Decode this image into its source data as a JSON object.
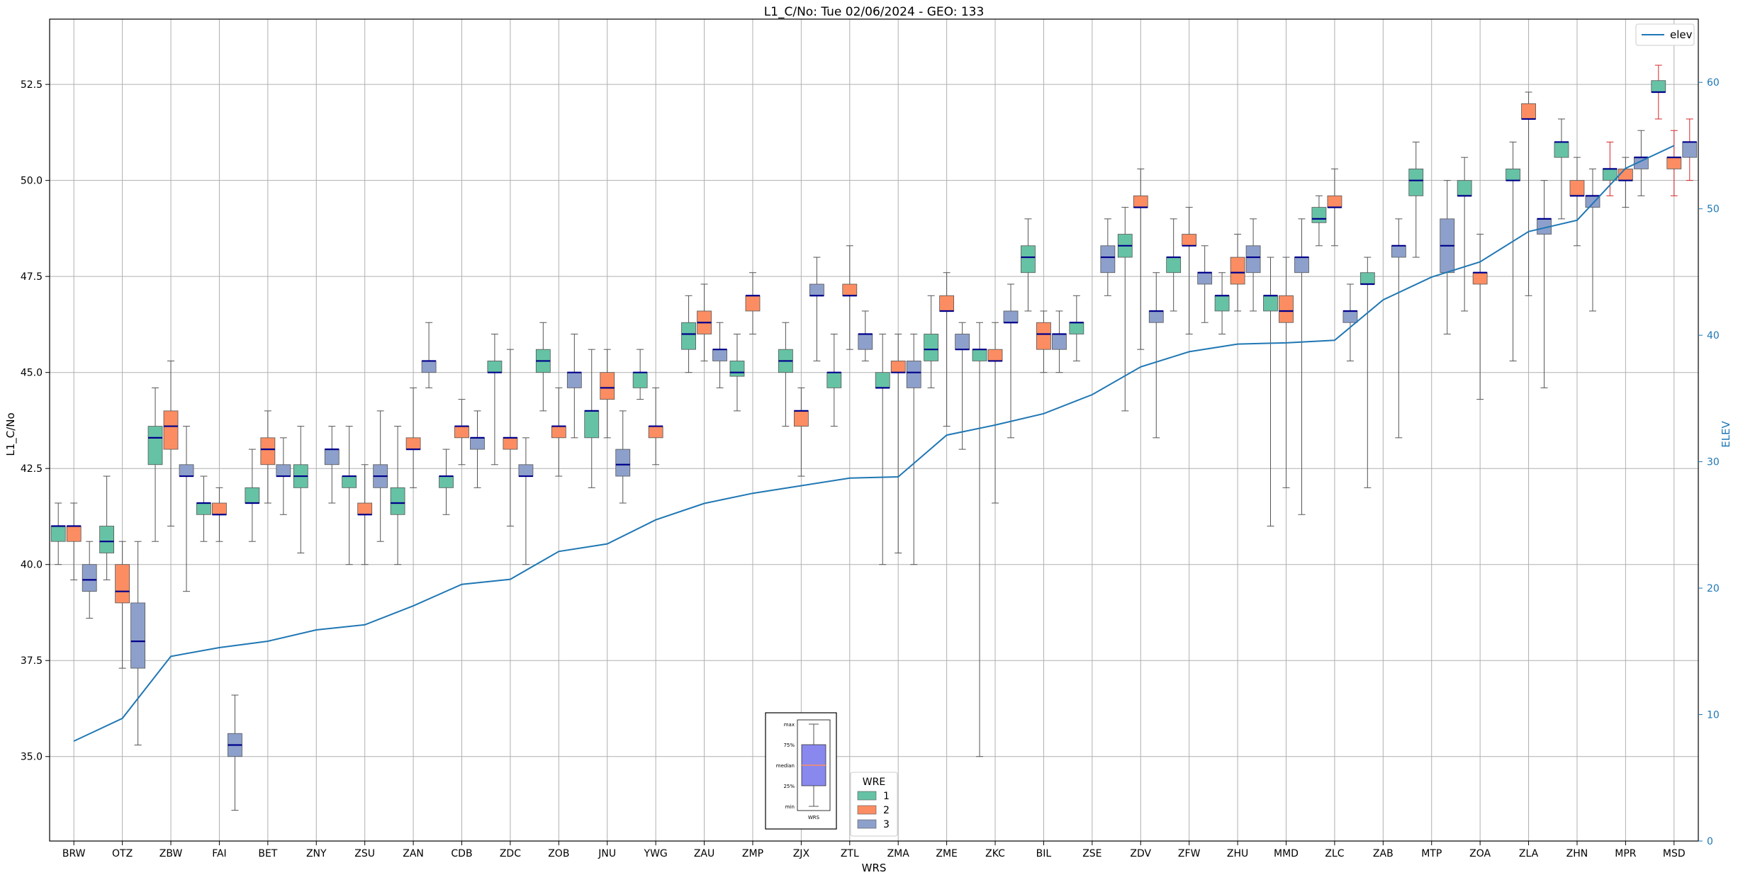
{
  "chart_data": {
    "type": "box",
    "title": "L1_C/No: Tue 02/06/2024 - GEO: 133",
    "xlabel": "WRS",
    "ylabel": "L1_C/No",
    "y2label": "ELEV",
    "ylim": [
      32.8,
      54.2
    ],
    "y2lim": [
      0,
      65
    ],
    "yticks": [
      35.0,
      37.5,
      40.0,
      42.5,
      45.0,
      47.5,
      50.0,
      52.5
    ],
    "y2ticks": [
      0,
      10,
      20,
      30,
      40,
      50,
      60
    ],
    "grid": true,
    "colors": {
      "1": "#66c2a5",
      "2": "#fc8d62",
      "3": "#8da0cb",
      "median": "#00008b",
      "elev": "#1f77b4",
      "whisker": "#555555",
      "whisker_alt": "#d62728"
    },
    "categories": [
      "BRW",
      "OTZ",
      "ZBW",
      "FAI",
      "BET",
      "ZNY",
      "ZSU",
      "ZAN",
      "CDB",
      "ZDC",
      "ZOB",
      "JNU",
      "YWG",
      "ZAU",
      "ZMP",
      "ZJX",
      "ZTL",
      "ZMA",
      "ZME",
      "ZKC",
      "BIL",
      "ZSE",
      "ZDV",
      "ZFW",
      "ZHU",
      "MMD",
      "ZLC",
      "ZAB",
      "MTP",
      "ZOA",
      "ZLA",
      "ZHN",
      "MPR",
      "MSD"
    ],
    "series": [
      {
        "name": "1",
        "values": [
          [
            40.0,
            40.6,
            41.0,
            41.0,
            41.6
          ],
          [
            39.6,
            40.3,
            40.6,
            41.0,
            42.3
          ],
          [
            40.6,
            42.6,
            43.3,
            43.6,
            44.6
          ],
          [
            40.6,
            41.3,
            41.6,
            41.6,
            42.3
          ],
          [
            40.6,
            41.6,
            41.6,
            42.0,
            43.0
          ],
          [
            40.3,
            42.0,
            42.3,
            42.6,
            43.6
          ],
          [
            40.0,
            42.0,
            42.3,
            42.3,
            43.6
          ],
          [
            40.0,
            41.3,
            41.6,
            42.0,
            43.6
          ],
          [
            41.3,
            42.0,
            42.3,
            42.3,
            43.0
          ],
          [
            42.6,
            45.0,
            45.0,
            45.3,
            46.0
          ],
          [
            44.0,
            45.0,
            45.3,
            45.6,
            46.3
          ],
          [
            42.0,
            43.3,
            44.0,
            44.0,
            45.6
          ],
          [
            44.3,
            44.6,
            45.0,
            45.0,
            45.6
          ],
          [
            45.0,
            45.6,
            46.0,
            46.3,
            47.0
          ],
          [
            44.0,
            44.9,
            45.0,
            45.3,
            46.0
          ],
          [
            43.6,
            45.0,
            45.3,
            45.6,
            46.3
          ],
          [
            43.6,
            44.6,
            45.0,
            45.0,
            46.0
          ],
          [
            40.0,
            44.6,
            44.6,
            45.0,
            46.0
          ],
          [
            44.6,
            45.3,
            45.6,
            46.0,
            47.0
          ],
          [
            35.0,
            45.3,
            45.6,
            45.6,
            46.3
          ],
          [
            46.6,
            47.6,
            48.0,
            48.3,
            49.0
          ],
          [
            45.3,
            46.0,
            46.3,
            46.3,
            47.0
          ],
          [
            44.0,
            48.0,
            48.3,
            48.6,
            49.3
          ],
          [
            46.6,
            47.6,
            48.0,
            48.0,
            49.0
          ],
          [
            46.0,
            46.6,
            47.0,
            47.0,
            47.6
          ],
          [
            41.0,
            46.6,
            47.0,
            47.0,
            48.0
          ],
          [
            48.3,
            48.9,
            49.0,
            49.3,
            49.6
          ],
          [
            42.0,
            47.3,
            47.3,
            47.6,
            48.0
          ],
          [
            48.0,
            49.6,
            50.0,
            50.3,
            51.0
          ],
          [
            46.6,
            49.6,
            49.6,
            50.0,
            50.6
          ],
          [
            45.3,
            50.0,
            50.0,
            50.3,
            51.0
          ],
          [
            49.0,
            50.6,
            51.0,
            51.0,
            51.6
          ],
          [
            49.6,
            50.0,
            50.3,
            50.3,
            51.0
          ],
          [
            51.6,
            52.3,
            52.3,
            52.6,
            53.0
          ]
        ]
      },
      {
        "name": "2",
        "values": [
          [
            39.6,
            40.6,
            41.0,
            41.0,
            41.6
          ],
          [
            37.3,
            39.0,
            39.3,
            40.0,
            40.6
          ],
          [
            41.0,
            43.0,
            43.6,
            44.0,
            45.3
          ],
          [
            40.6,
            41.3,
            41.3,
            41.6,
            42.0
          ],
          [
            41.6,
            42.6,
            43.0,
            43.3,
            44.0
          ],
          null,
          [
            40.0,
            41.3,
            41.3,
            41.6,
            42.6
          ],
          [
            42.0,
            43.0,
            43.0,
            43.3,
            44.6
          ],
          [
            42.6,
            43.3,
            43.6,
            43.6,
            44.3
          ],
          [
            41.0,
            43.0,
            43.3,
            43.3,
            45.6
          ],
          [
            42.3,
            43.3,
            43.6,
            43.6,
            44.6
          ],
          [
            43.3,
            44.3,
            44.6,
            45.0,
            45.6
          ],
          [
            42.6,
            43.3,
            43.6,
            43.6,
            44.6
          ],
          [
            45.3,
            46.0,
            46.3,
            46.6,
            47.3
          ],
          [
            46.0,
            46.6,
            47.0,
            47.0,
            47.6
          ],
          [
            42.3,
            43.6,
            44.0,
            44.0,
            44.6
          ],
          [
            45.6,
            47.0,
            47.0,
            47.3,
            48.3
          ],
          [
            40.3,
            45.0,
            45.0,
            45.3,
            46.0
          ],
          [
            43.6,
            46.6,
            46.6,
            47.0,
            47.6
          ],
          [
            41.6,
            45.3,
            45.3,
            45.6,
            46.3
          ],
          [
            45.0,
            45.6,
            46.0,
            46.3,
            46.6
          ],
          null,
          [
            45.6,
            49.3,
            49.3,
            49.6,
            50.3
          ],
          [
            46.0,
            48.3,
            48.3,
            48.6,
            49.3
          ],
          [
            46.6,
            47.3,
            47.6,
            48.0,
            48.6
          ],
          [
            42.0,
            46.3,
            46.6,
            47.0,
            48.0
          ],
          [
            48.3,
            49.3,
            49.3,
            49.6,
            50.3
          ],
          null,
          null,
          [
            44.3,
            47.3,
            47.6,
            47.6,
            48.6
          ],
          [
            47.0,
            51.6,
            51.6,
            52.0,
            52.3
          ],
          [
            48.3,
            49.6,
            49.6,
            50.0,
            50.6
          ],
          [
            49.3,
            50.0,
            50.0,
            50.3,
            50.6
          ],
          [
            49.6,
            50.3,
            50.6,
            50.6,
            51.3
          ]
        ]
      },
      {
        "name": "3",
        "values": [
          [
            38.6,
            39.3,
            39.6,
            40.0,
            40.6
          ],
          [
            35.3,
            37.3,
            38.0,
            39.0,
            40.6
          ],
          [
            39.3,
            42.3,
            42.3,
            42.6,
            43.6
          ],
          [
            33.6,
            35.0,
            35.3,
            35.6,
            36.6
          ],
          [
            41.3,
            42.3,
            42.3,
            42.6,
            43.3
          ],
          [
            41.6,
            42.6,
            43.0,
            43.0,
            43.6
          ],
          [
            40.6,
            42.0,
            42.3,
            42.6,
            44.0
          ],
          [
            44.6,
            45.0,
            45.3,
            45.3,
            46.3
          ],
          [
            42.0,
            43.0,
            43.3,
            43.3,
            44.0
          ],
          [
            40.0,
            42.3,
            42.3,
            42.6,
            43.3
          ],
          [
            43.3,
            44.6,
            45.0,
            45.0,
            46.0
          ],
          [
            41.6,
            42.3,
            42.6,
            43.0,
            44.0
          ],
          null,
          [
            44.6,
            45.3,
            45.6,
            45.6,
            46.3
          ],
          null,
          [
            45.3,
            47.0,
            47.0,
            47.3,
            48.0
          ],
          [
            45.3,
            45.6,
            46.0,
            46.0,
            46.6
          ],
          [
            40.0,
            44.6,
            45.0,
            45.3,
            46.0
          ],
          [
            43.0,
            45.6,
            45.6,
            46.0,
            46.3
          ],
          [
            43.3,
            46.3,
            46.3,
            46.6,
            47.3
          ],
          [
            45.0,
            45.6,
            46.0,
            46.0,
            46.6
          ],
          [
            47.0,
            47.6,
            48.0,
            48.3,
            49.0
          ],
          [
            43.3,
            46.3,
            46.6,
            46.6,
            47.6
          ],
          [
            46.3,
            47.3,
            47.6,
            47.6,
            48.3
          ],
          [
            46.6,
            47.6,
            48.0,
            48.3,
            49.0
          ],
          [
            41.3,
            47.6,
            48.0,
            48.0,
            49.0
          ],
          [
            45.3,
            46.3,
            46.6,
            46.6,
            47.3
          ],
          [
            43.3,
            48.0,
            48.3,
            48.3,
            49.0
          ],
          [
            46.0,
            47.6,
            48.3,
            49.0,
            50.0
          ],
          null,
          [
            44.6,
            48.6,
            49.0,
            49.0,
            50.0
          ],
          [
            46.6,
            49.3,
            49.6,
            49.6,
            50.3
          ],
          [
            49.6,
            50.3,
            50.6,
            50.6,
            51.3
          ],
          [
            50.0,
            50.6,
            51.0,
            51.0,
            51.6
          ]
        ]
      }
    ],
    "elev": {
      "name": "elev",
      "values": [
        7.9,
        9.7,
        14.6,
        15.3,
        15.8,
        16.7,
        17.1,
        18.6,
        20.3,
        20.7,
        22.9,
        23.5,
        25.4,
        26.7,
        27.5,
        28.1,
        28.7,
        28.8,
        32.1,
        32.9,
        33.8,
        35.3,
        37.5,
        38.7,
        39.3,
        39.4,
        39.6,
        42.8,
        44.6,
        45.8,
        48.2,
        49.1,
        53.2,
        55.0
      ]
    },
    "legend_top": {
      "placement": "top-right",
      "label": "elev"
    },
    "legend_wre": {
      "title": "WRE",
      "labels": [
        "1",
        "2",
        "3"
      ],
      "placement": "bottom-center"
    },
    "inset_key": {
      "labels": [
        "max",
        "75%",
        "median",
        "25%",
        "min"
      ],
      "xlabel": "WRS"
    }
  }
}
